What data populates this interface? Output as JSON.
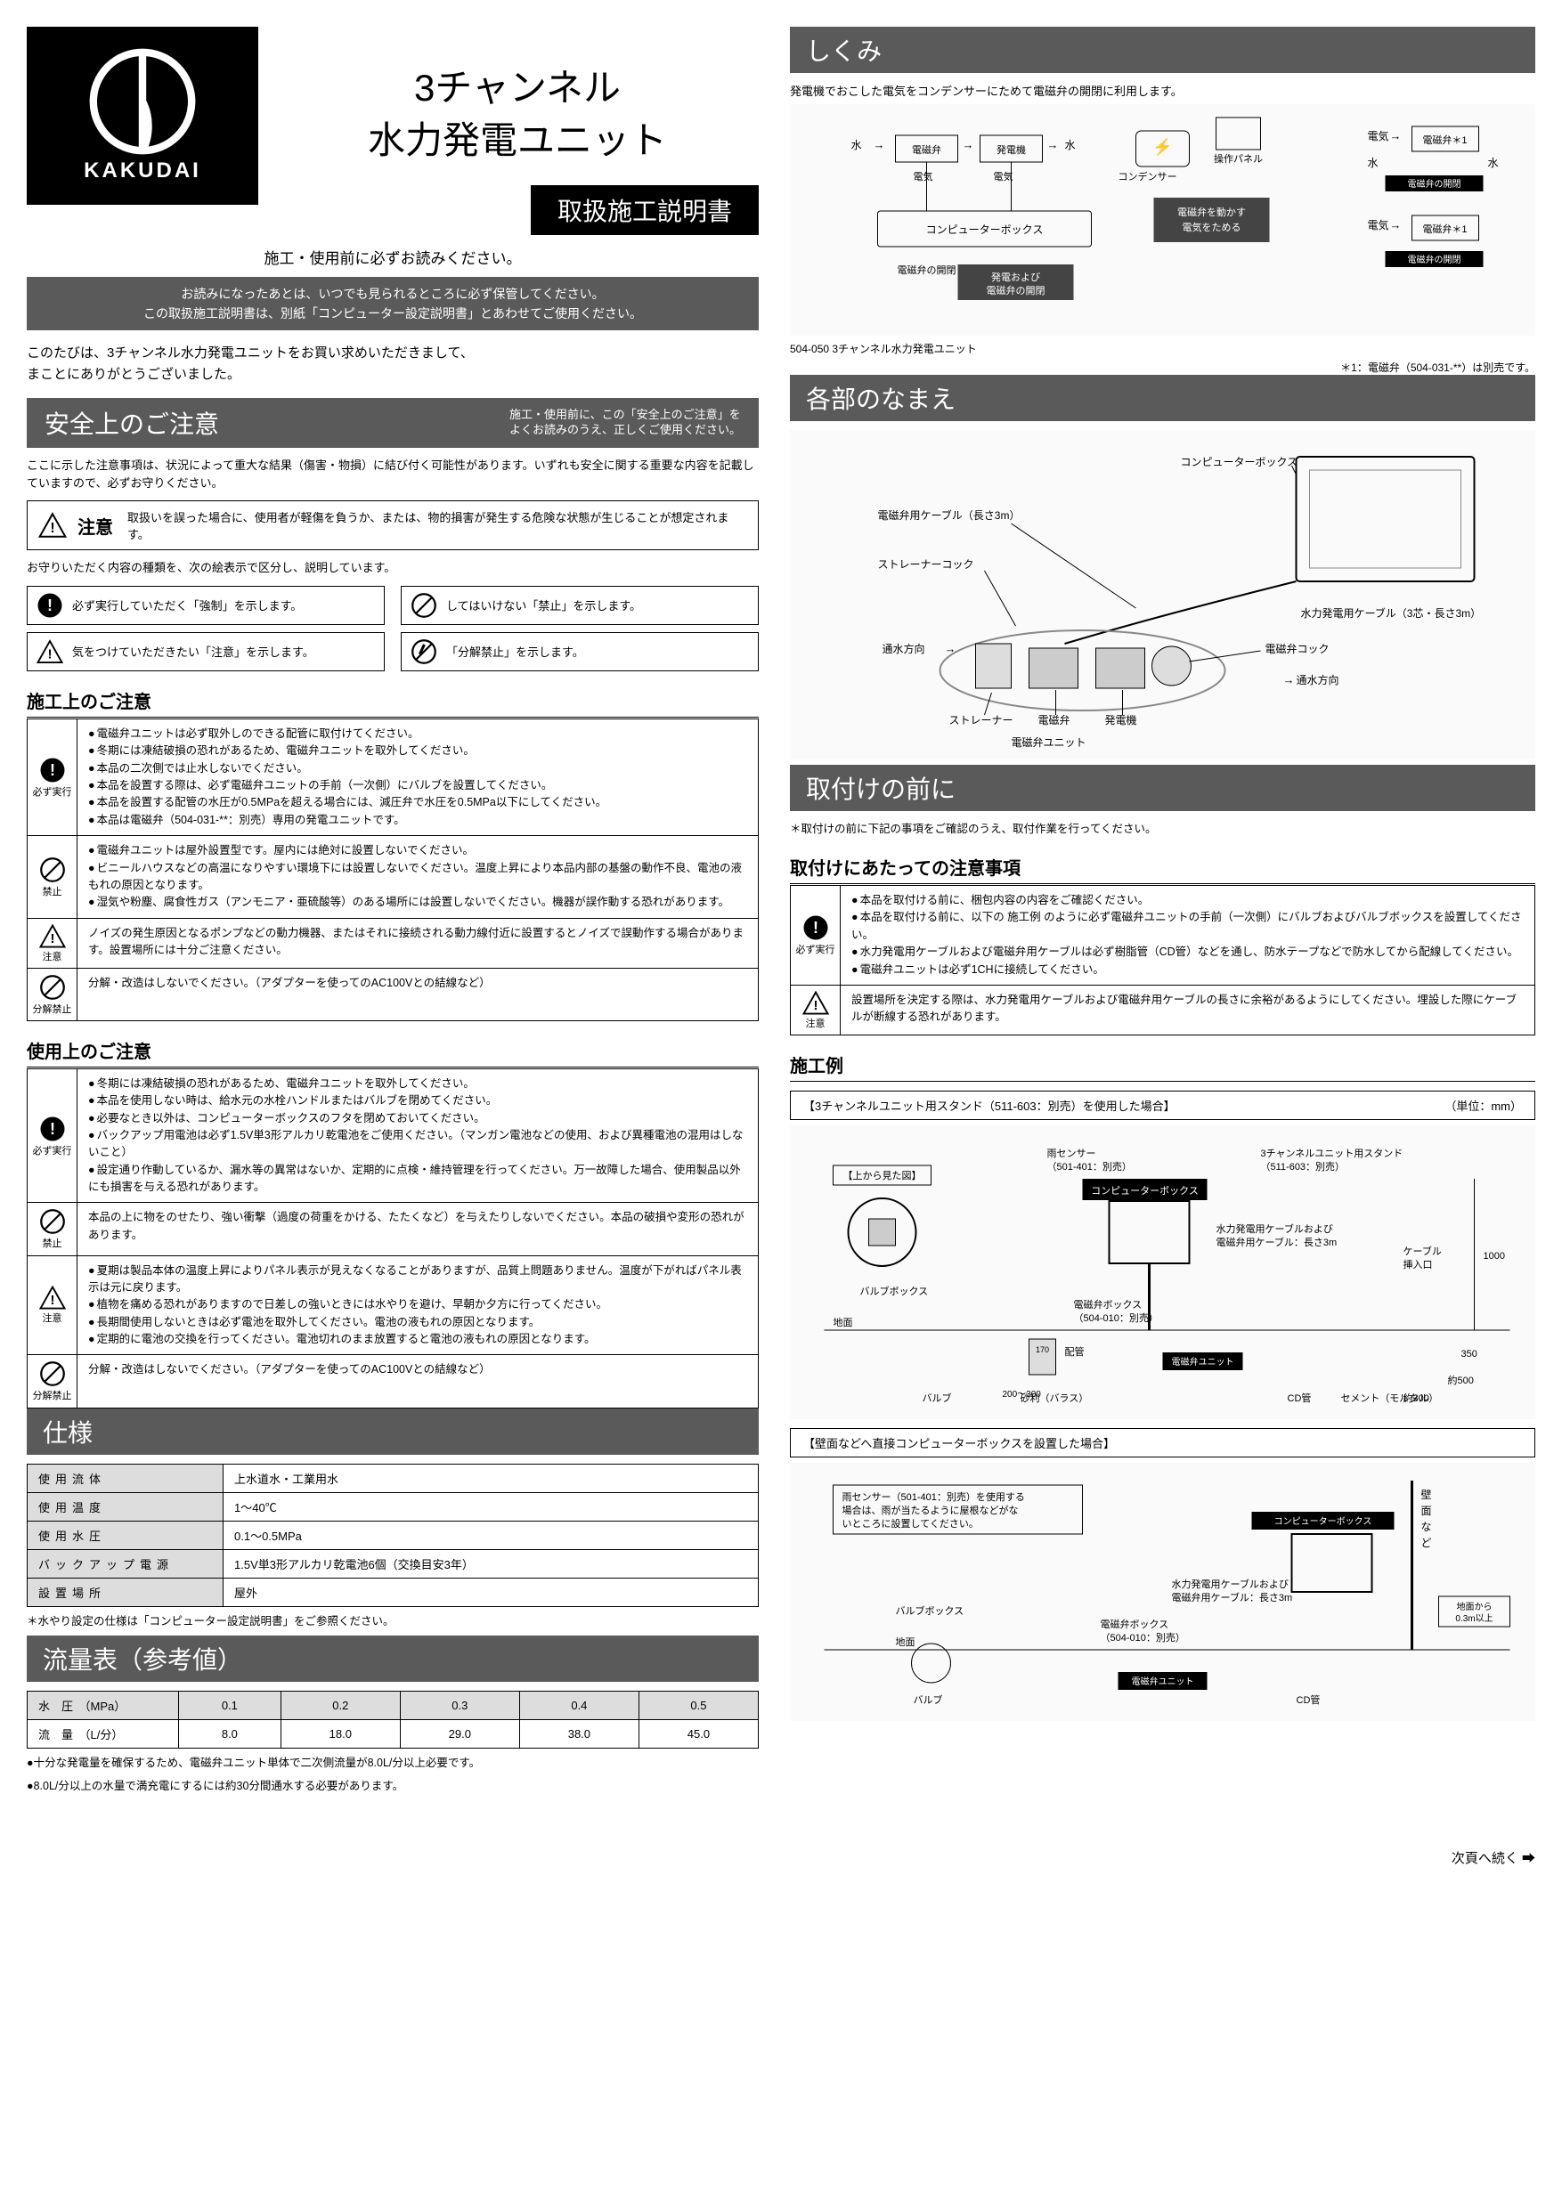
{
  "brand": "KAKUDAI",
  "product_title_l1": "3チャンネル",
  "product_title_l2": "水力発電ユニット",
  "manual_title": "取扱施工説明書",
  "read_before": "施工・使用前に必ずお読みください。",
  "keep_note_bar_l1": "お読みになったあとは、いつでも見られるところに必ず保管してください。",
  "keep_note_bar_l2": "この取扱施工説明書は、別紙「コンピューター設定説明書」とあわせてご使用ください。",
  "thanks_l1": "このたびは、3チャンネル水力発電ユニットをお買い求めいただきまして、",
  "thanks_l2": "まことにありがとうございました。",
  "safety_head": "安全上のご注意",
  "safety_head_sub": "施工・使用前に、この「安全上のご注意」を\nよくお読みのうえ、正しくご使用ください。",
  "safety_lead": "ここに示した注意事項は、状況によって重大な結果（傷害・物損）に結び付く可能性があります。いずれも安全に関する重要な内容を記載していますので、必ずお守りください。",
  "caution_word": "注意",
  "caution_desc": "取扱いを誤った場合に、使用者が軽傷を負うか、または、物的損害が発生する危険な状態が生じることが想定されます。",
  "legend_intro": "お守りいただく内容の種類を、次の絵表示で区分し、説明しています。",
  "legend_force": "必ず実行していただく「強制」を示します。",
  "legend_forbid": "してはいけない「禁止」を示します。",
  "legend_caution": "気をつけていただきたい「注意」を示します。",
  "legend_nodisasm": "「分解禁止」を示します。",
  "install_head": "施工上のご注意",
  "install_force_list": [
    "電磁弁ユニットは必ず取外しのできる配管に取付けてください。",
    "冬期には凍結破損の恐れがあるため、電磁弁ユニットを取外してください。",
    "本品の二次側では止水しないでください。",
    "本品を設置する際は、必ず電磁弁ユニットの手前（一次側）にバルブを設置してください。",
    "本品を設置する配管の水圧が0.5MPaを超える場合には、減圧弁で水圧を0.5MPa以下にしてください。",
    "本品は電磁弁（504-031-**：別売）専用の発電ユニットです。"
  ],
  "install_forbid_list": [
    "電磁弁ユニットは屋外設置型です。屋内には絶対に設置しないでください。",
    "ビニールハウスなどの高温になりやすい環境下には設置しないでください。温度上昇により本品内部の基盤の動作不良、電池の液もれの原因となります。",
    "湿気や粉塵、腐食性ガス（アンモニア・亜硫酸等）のある場所には設置しないでください。機器が誤作動する恐れがあります。"
  ],
  "install_caution_p": "ノイズの発生原因となるポンプなどの動力機器、またはそれに接続される動力線付近に設置するとノイズで誤動作する場合があります。設置場所には十分ご注意ください。",
  "install_nodisasm_p": "分解・改造はしないでください。（アダプターを使ってのAC100Vとの結線など）",
  "use_head": "使用上のご注意",
  "use_force_list": [
    "冬期には凍結破損の恐れがあるため、電磁弁ユニットを取外してください。",
    "本品を使用しない時は、給水元の水栓ハンドルまたはバルブを閉めてください。",
    "必要なとき以外は、コンピューターボックスのフタを閉めておいてください。",
    "バックアップ用電池は必ず1.5V単3形アルカリ乾電池をご使用ください。（マンガン電池などの使用、および異種電池の混用はしないこと）",
    "設定通り作動しているか、漏水等の異常はないか、定期的に点検・維持管理を行ってください。万一故障した場合、使用製品以外にも損害を与える恐れがあります。"
  ],
  "use_forbid_p": "本品の上に物をのせたり、強い衝撃（過度の荷重をかける、たたくなど）を与えたりしないでください。本品の破損や変形の恐れがあります。",
  "use_caution_list": [
    "夏期は製品本体の温度上昇によりパネル表示が見えなくなることがありますが、品質上問題ありません。温度が下がればパネル表示は元に戻ります。",
    "植物を痛める恐れがありますので日差しの強いときには水やりを避け、早朝か夕方に行ってください。",
    "長期間使用しないときは必ず電池を取外してください。電池の液もれの原因となります。",
    "定期的に電池の交換を行ってください。電池切れのまま放置すると電池の液もれの原因となります。"
  ],
  "use_nodisasm_p": "分解・改造はしないでください。（アダプターを使ってのAC100Vとの結線など）",
  "spec_head": "仕様",
  "spec_rows": [
    {
      "k": "使用流体",
      "v": "上水道水・工業用水"
    },
    {
      "k": "使用温度",
      "v": "1～40℃"
    },
    {
      "k": "使用水圧",
      "v": "0.1～0.5MPa"
    },
    {
      "k": "バックアップ電源",
      "v": "1.5V単3形アルカリ乾電池6個（交換目安3年）"
    },
    {
      "k": "設置場所",
      "v": "屋外"
    }
  ],
  "spec_note": "水やり設定の仕様は「コンピューター設定説明書」をご参照ください。",
  "flow_head": "流量表（参考値）",
  "flow_header": [
    "水　圧　（MPa）",
    "0.1",
    "0.2",
    "0.3",
    "0.4",
    "0.5"
  ],
  "flow_row": [
    "流　量　（L/分）",
    "8.0",
    "18.0",
    "29.0",
    "38.0",
    "45.0"
  ],
  "flow_note1": "十分な発電量を確保するため、電磁弁ユニット単体で二次側流量が8.0L/分以上必要です。",
  "flow_note2": "8.0L/分以上の水量で満充電にするには約30分間通水する必要があります。",
  "mechanism_head": "しくみ",
  "mechanism_desc": "発電機でおこした電気をコンデンサーにためて電磁弁の開閉に利用します。",
  "mechanism_unit_caption": "504-050 3チャンネル水力発電ユニット",
  "mechanism_footnote": "＊1：電磁弁（504-031-**）は別売です。",
  "parts_head": "各部のなまえ",
  "parts_labels": {
    "computer_box": "コンピューターボックス",
    "valve_cable": "電磁弁用ケーブル（長さ3m）",
    "strainer_cock": "ストレーナーコック",
    "power_cable": "水力発電用ケーブル（3芯・長さ3m）",
    "flow_dir": "通水方向",
    "valve_cock": "電磁弁コック",
    "strainer": "ストレーナー",
    "valve": "電磁弁",
    "generator": "発電機",
    "unit": "電磁弁ユニット"
  },
  "before_head": "取付けの前に",
  "before_note": "取付けの前に下記の事項をご確認のうえ、取付作業を行ってください。",
  "before_sub": "取付けにあたっての注意事項",
  "before_force_list": [
    "本品を取付ける前に、梱包内容の内容をご確認ください。",
    "本品を取付ける前に、以下の 施工例 のように必ず電磁弁ユニットの手前（一次側）にバルブおよびバルブボックスを設置してください。",
    "水力発電用ケーブルおよび電磁弁用ケーブルは必ず樹脂管（CD管）などを通し、防水テープなどで防水してから配線してください。",
    "電磁弁ユニットは必ず1CHに接続してください。"
  ],
  "before_caution_p": "設置場所を決定する際は、水力発電用ケーブルおよび電磁弁用ケーブルの長さに余裕があるようにしてください。埋設した際にケーブルが断線する恐れがあります。",
  "example_head": "施工例",
  "example_case1_head": "【3チャンネルユニット用スタンド（511-603：別売）を使用した場合】",
  "example_unit_note": "（単位：mm）",
  "example_view_top": "【上から見た図】",
  "example_case2_head": "【壁面などへ直接コンピューターボックスを設置した場合】",
  "example_rain_note": "雨センサー（501-401：別売）を使用する場合は、雨が当たるように屋根などがないところに設置してください。",
  "example_ground_note": "地面から0.3m以上",
  "next_page": "次頁へ続く",
  "icon_labels": {
    "force": "必ず実行",
    "forbid": "禁止",
    "caution": "注意",
    "nodisasm": "分解禁止"
  }
}
